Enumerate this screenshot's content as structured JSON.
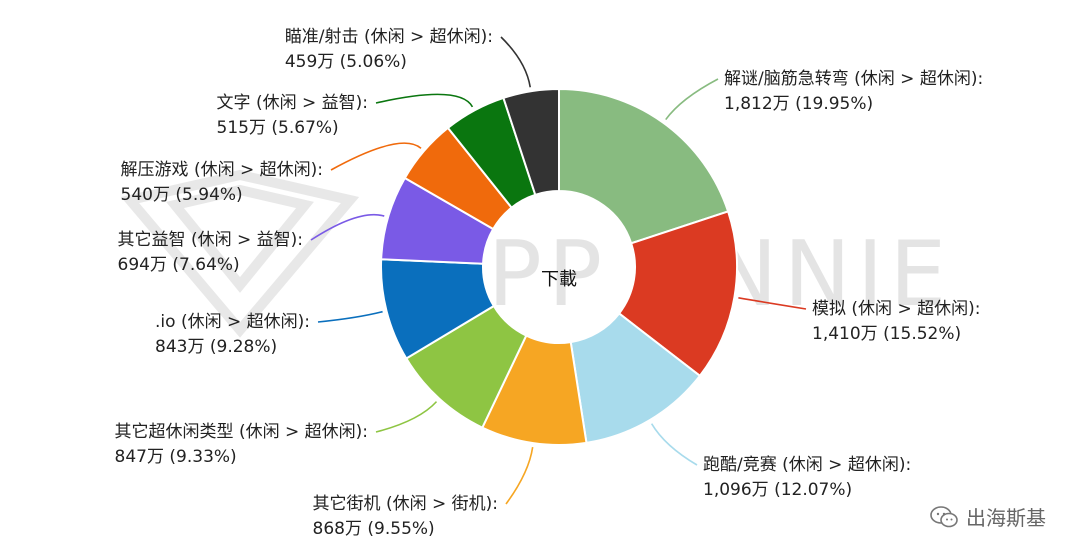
{
  "chart_data": {
    "type": "pie",
    "donut": true,
    "center_label": "下載",
    "watermark": "APP ANNIE",
    "slices": [
      {
        "label": "解谜/脑筋急转弯 (休闲 > 超休闲):",
        "value_text": "1,812万 (19.95%)",
        "value": 1812,
        "percent": 19.95,
        "color": "#88bb80"
      },
      {
        "label": "模拟 (休闲 > 超休闲):",
        "value_text": "1,410万 (15.52%)",
        "value": 1410,
        "percent": 15.52,
        "color": "#db3a22"
      },
      {
        "label": "跑酷/竞赛 (休闲 > 超休闲):",
        "value_text": "1,096万 (12.07%)",
        "value": 1096,
        "percent": 12.07,
        "color": "#a8dbec"
      },
      {
        "label": "其它街机 (休闲 > 街机):",
        "value_text": "868万 (9.55%)",
        "value": 868,
        "percent": 9.55,
        "color": "#f6a623"
      },
      {
        "label": "其它超休闲类型 (休闲 > 超休闲):",
        "value_text": "847万 (9.33%)",
        "value": 847,
        "percent": 9.33,
        "color": "#8ec543"
      },
      {
        "label": ".io (休闲 > 超休闲):",
        "value_text": "843万 (9.28%)",
        "value": 843,
        "percent": 9.28,
        "color": "#0a6fbd"
      },
      {
        "label": "其它益智 (休闲 > 益智):",
        "value_text": "694万 (7.64%)",
        "value": 694,
        "percent": 7.64,
        "color": "#7a5ae6"
      },
      {
        "label": "解压游戏 (休闲 > 超休闲):",
        "value_text": "540万 (5.94%)",
        "value": 540,
        "percent": 5.94,
        "color": "#f06a0c"
      },
      {
        "label": "文字 (休闲 > 益智):",
        "value_text": "515万 (5.67%)",
        "value": 515,
        "percent": 5.67,
        "color": "#0a760f"
      },
      {
        "label": "瞄准/射击 (休闲 > 超休闲):",
        "value_text": "459万 (5.06%)",
        "value": 459,
        "percent": 5.06,
        "color": "#333333"
      }
    ]
  },
  "credit": {
    "text": "出海斯基",
    "icon": "wechat-icon"
  }
}
